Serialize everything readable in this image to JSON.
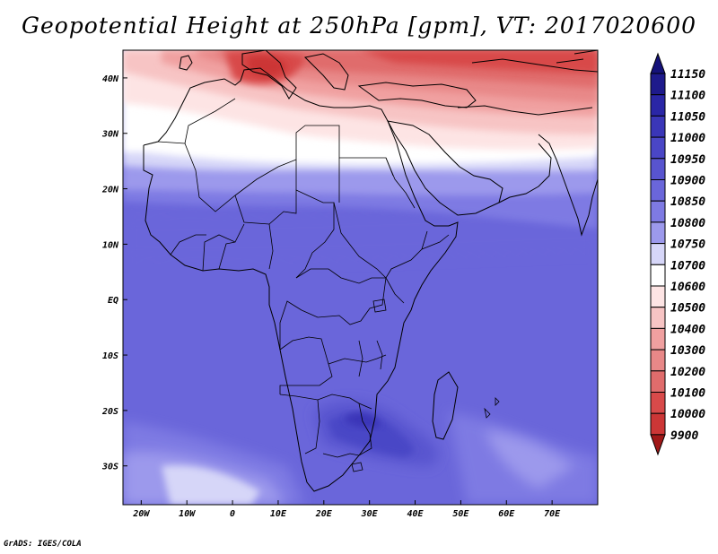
{
  "title": "Geopotential Height at 250hPa [gpm], VT: 2017020600",
  "footer": "GrADS: IGES/COLA",
  "map": {
    "lon_range": [
      -24,
      80
    ],
    "lat_range": [
      -37,
      45
    ],
    "lat_ticks": [
      {
        "value": 40,
        "label": "40N"
      },
      {
        "value": 30,
        "label": "30N"
      },
      {
        "value": 20,
        "label": "20N"
      },
      {
        "value": 10,
        "label": "10N"
      },
      {
        "value": 0,
        "label": "EQ"
      },
      {
        "value": -10,
        "label": "10S"
      },
      {
        "value": -20,
        "label": "20S"
      },
      {
        "value": -30,
        "label": "30S"
      }
    ],
    "lon_ticks": [
      {
        "value": -20,
        "label": "20W"
      },
      {
        "value": -10,
        "label": "10W"
      },
      {
        "value": 0,
        "label": "0"
      },
      {
        "value": 10,
        "label": "10E"
      },
      {
        "value": 20,
        "label": "20E"
      },
      {
        "value": 30,
        "label": "30E"
      },
      {
        "value": 40,
        "label": "40E"
      },
      {
        "value": 50,
        "label": "50E"
      },
      {
        "value": 60,
        "label": "60E"
      },
      {
        "value": 70,
        "label": "70E"
      }
    ]
  },
  "colorbar": {
    "levels": [
      {
        "label": "11150",
        "color": "#1e1a8c"
      },
      {
        "label": "11100",
        "color": "#2a26a6"
      },
      {
        "label": "11050",
        "color": "#3a36b8"
      },
      {
        "label": "11000",
        "color": "#4a46c6"
      },
      {
        "label": "10950",
        "color": "#5854cf"
      },
      {
        "label": "10900",
        "color": "#6a66da"
      },
      {
        "label": "10850",
        "color": "#7e7ae3"
      },
      {
        "label": "10800",
        "color": "#9c99ec"
      },
      {
        "label": "10750",
        "color": "#d6d6f8"
      },
      {
        "label": "10700",
        "color": "#ffffff"
      },
      {
        "label": "10600",
        "color": "#fde4e4"
      },
      {
        "label": "10500",
        "color": "#f7c4c4"
      },
      {
        "label": "10400",
        "color": "#f0a0a0"
      },
      {
        "label": "10300",
        "color": "#e88888"
      },
      {
        "label": "10200",
        "color": "#e06c6c"
      },
      {
        "label": "10100",
        "color": "#d84a4a"
      },
      {
        "label": "10000",
        "color": "#cc3636"
      },
      {
        "label": "9900",
        "color": "#b82222"
      }
    ],
    "top_arrow_color": "#15127a",
    "bottom_arrow_color": "#a01818"
  }
}
